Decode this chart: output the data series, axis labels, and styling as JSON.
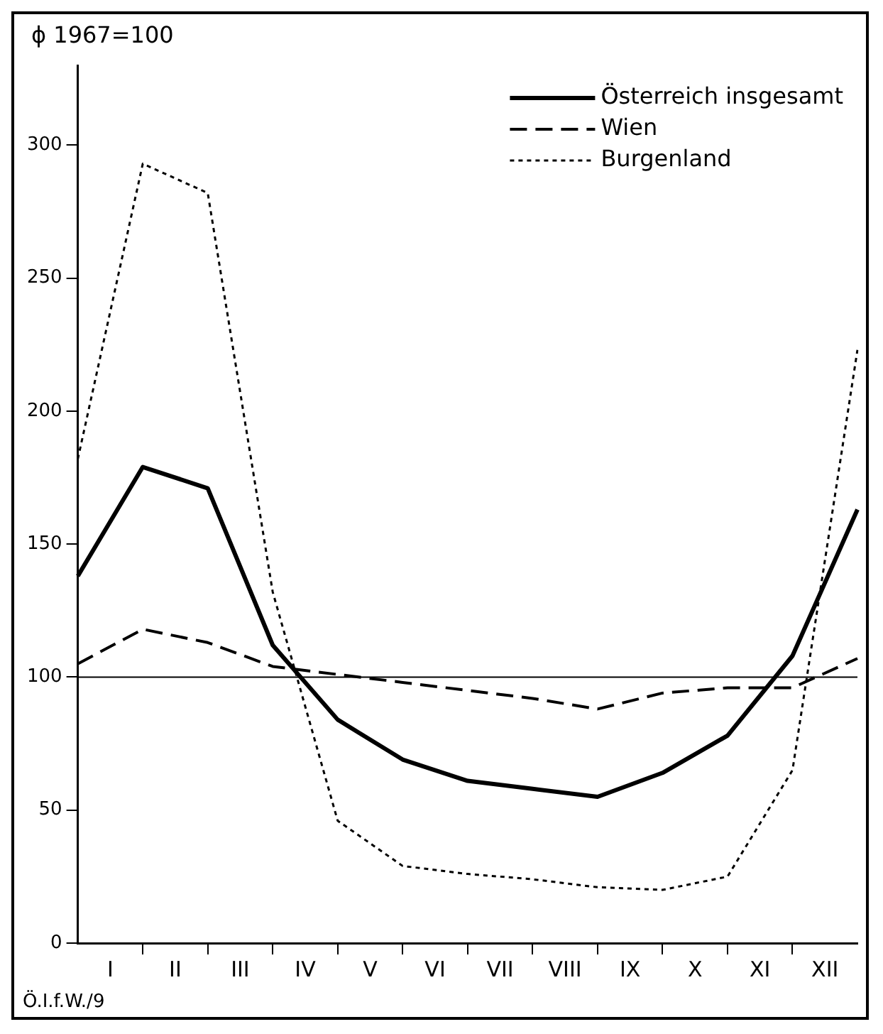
{
  "chart_data": {
    "type": "line",
    "ylabel": "ϕ 1967=100",
    "annotations": [
      "I",
      "II",
      "III",
      "IV",
      "V",
      "VI",
      "VII",
      "VIII",
      "IX",
      "X",
      "XI",
      "XII",
      "Ö.I.f.W./9"
    ],
    "categories": [
      null,
      null,
      null,
      null,
      null,
      null,
      null,
      null,
      null,
      null,
      null,
      null,
      null
    ],
    "ylim": [
      0,
      330
    ],
    "yticks": [
      0,
      50,
      100,
      150,
      200,
      250,
      300
    ],
    "series": [
      {
        "name": "Österreich insgesamt",
        "color": "#000000",
        "line_style": "solid",
        "values": [
          138,
          179,
          171,
          112,
          84,
          69,
          61,
          58,
          55,
          64,
          78,
          108,
          163
        ]
      },
      {
        "name": "Wien",
        "color": "#000000",
        "line_style": "dashed",
        "values": [
          105,
          118,
          113,
          104,
          101,
          98,
          95,
          92,
          88,
          94,
          96,
          96,
          107
        ]
      },
      {
        "name": "Burgenland",
        "color": "#000000",
        "line_style": "dotted",
        "values": [
          182,
          293,
          282,
          132,
          46,
          29,
          26,
          24,
          21,
          20,
          25,
          65,
          223
        ]
      }
    ],
    "ref_lines": [
      {
        "axis": "y",
        "value": 100,
        "color": "#000000"
      }
    ],
    "legend": "top right",
    "marker": "none",
    "grid": false
  }
}
